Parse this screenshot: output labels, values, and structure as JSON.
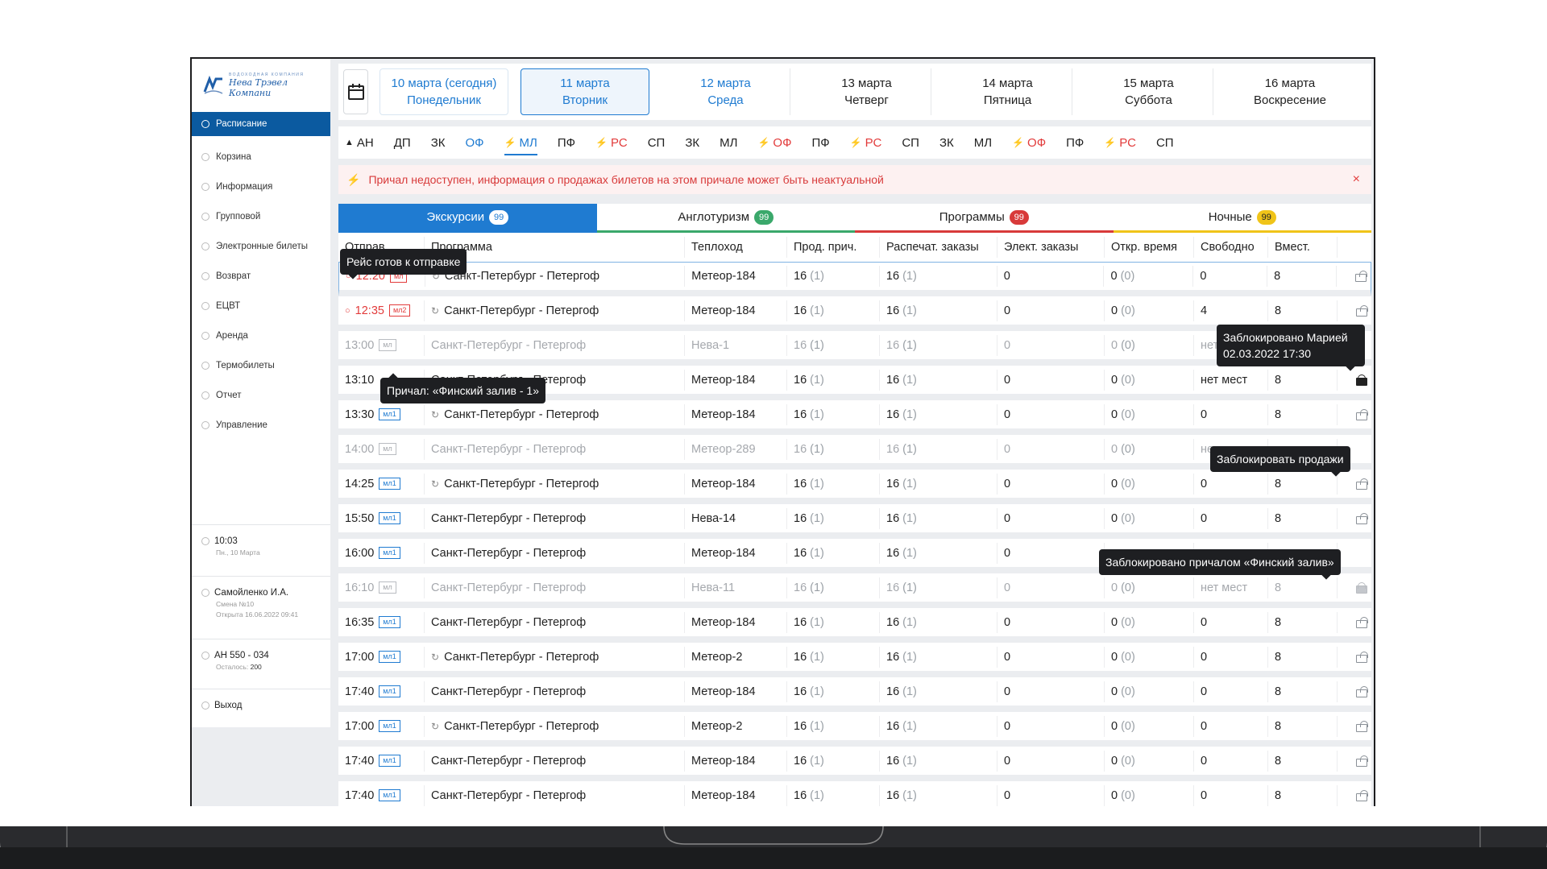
{
  "sidebar": {
    "logo_small": "ВОДОХОДНАЯ КОМПАНИЯ",
    "logo_big": "Нева Трэвел Компани",
    "items": [
      {
        "label": "Расписание",
        "active": true
      },
      {
        "label": "Корзина"
      },
      {
        "label": "Информация"
      },
      {
        "label": "Групповой"
      },
      {
        "label": "Электронные билеты"
      },
      {
        "label": "Возврат"
      },
      {
        "label": "ЕЦВТ"
      },
      {
        "label": "Аренда"
      },
      {
        "label": "Термобилеты"
      },
      {
        "label": "Отчет"
      },
      {
        "label": "Управление"
      }
    ],
    "clock": {
      "time": "10:03",
      "date": "Пн., 10 Марта"
    },
    "user": {
      "name": "Самойленко И.А.",
      "shift": "Смена №10",
      "opened": "Открыта 16.06.2022 09:41"
    },
    "terminal": {
      "id": "АН 550 - 034",
      "left_label": "Осталось:",
      "left_value": "200"
    },
    "logout": "Выход"
  },
  "dates": [
    {
      "line1": "10 марта (сегодня)",
      "line2": "Понедельник",
      "state": "today"
    },
    {
      "line1": "11 марта",
      "line2": "Вторник",
      "state": "selected"
    },
    {
      "line1": "12 марта",
      "line2": "Среда",
      "state": "blue"
    },
    {
      "line1": "13 марта",
      "line2": "Четверг"
    },
    {
      "line1": "14 марта",
      "line2": "Пятница"
    },
    {
      "line1": "15 марта",
      "line2": "Суббота"
    },
    {
      "line1": "16 марта",
      "line2": "Воскресение"
    }
  ],
  "piers": [
    {
      "label": "АН",
      "icon": "home"
    },
    {
      "label": "ДП"
    },
    {
      "label": "ЗК"
    },
    {
      "label": "ОФ",
      "style": "blue"
    },
    {
      "label": "МЛ",
      "style": "selected",
      "icon": "flash"
    },
    {
      "label": "ПФ"
    },
    {
      "label": "РС",
      "style": "red",
      "icon": "flash"
    },
    {
      "label": "СП"
    },
    {
      "label": "ЗК"
    },
    {
      "label": "МЛ"
    },
    {
      "label": "ОФ",
      "style": "red",
      "icon": "flash"
    },
    {
      "label": "ПФ"
    },
    {
      "label": "РС",
      "style": "red",
      "icon": "flash"
    },
    {
      "label": "СП"
    },
    {
      "label": "ЗК"
    },
    {
      "label": "МЛ"
    },
    {
      "label": "ОФ",
      "style": "red",
      "icon": "flash"
    },
    {
      "label": "ПФ"
    },
    {
      "label": "РС",
      "style": "red",
      "icon": "flash"
    },
    {
      "label": "СП"
    }
  ],
  "alert": {
    "text": "Причал недоступен, информация о продажах билетов на этом причале может быть неактуальной",
    "close": "×"
  },
  "tabs": [
    {
      "label": "Экскурсии",
      "count": "99",
      "color": "#1f7bd1",
      "active": true
    },
    {
      "label": "Англотуризм",
      "count": "99",
      "color": "#3aa86b"
    },
    {
      "label": "Программы",
      "count": "99",
      "color": "#d83a3a"
    },
    {
      "label": "Ночные",
      "count": "99",
      "color": "#f0c419"
    }
  ],
  "columns": [
    "Отправ.",
    "Программа",
    "Теплоход",
    "Прод. прич.",
    "Распечат. заказы",
    "Элект. заказы",
    "Откр. время",
    "Свободно",
    "Вмест."
  ],
  "rows": [
    {
      "time": "12:20",
      "tag": "мл",
      "tagStyle": "red",
      "timeRed": true,
      "sync": true,
      "route": "Санкт-Петербург - Петергоф",
      "ship": "Метеор-184",
      "prod": "16",
      "prodSub": "(1)",
      "print": "16",
      "printSub": "(1)",
      "elect": "0",
      "open": "0",
      "openSub": "(0)",
      "free": "0",
      "cap": "8",
      "lock": "open",
      "selected": true
    },
    {
      "time": "12:35",
      "tag": "мл2",
      "tagStyle": "red",
      "timeRed": true,
      "sync": true,
      "route": "Санкт-Петербург - Петергоф",
      "ship": "Метеор-184",
      "prod": "16",
      "prodSub": "(1)",
      "print": "16",
      "printSub": "(1)",
      "elect": "0",
      "open": "0",
      "openSub": "(0)",
      "free": "4",
      "cap": "8",
      "lock": "open"
    },
    {
      "time": "13:00",
      "tag": "мл",
      "tagStyle": "gray",
      "gray": true,
      "route": "Санкт-Петербург - Петергоф",
      "ship": "Нева-1",
      "prod": "16",
      "prodSub": "(1)",
      "print": "16",
      "printSub": "(1)",
      "elect": "0",
      "open": "0",
      "openSub": "(0)",
      "free": "нет мест",
      "cap": "",
      "lock": "none"
    },
    {
      "time": "13:10",
      "tag": "",
      "route": "Санкт-Петербург - Петергоф",
      "ship": "Метеор-184",
      "prod": "16",
      "prodSub": "(1)",
      "print": "16",
      "printSub": "(1)",
      "elect": "0",
      "open": "0",
      "openSub": "(0)",
      "free": "нет мест",
      "cap": "8",
      "lock": "closed"
    },
    {
      "time": "13:30",
      "tag": "мл1",
      "sync": true,
      "route": "Санкт-Петербург - Петергоф",
      "ship": "Метеор-184",
      "prod": "16",
      "prodSub": "(1)",
      "print": "16",
      "printSub": "(1)",
      "elect": "0",
      "open": "0",
      "openSub": "(0)",
      "free": "0",
      "cap": "8",
      "lock": "open"
    },
    {
      "time": "14:00",
      "tag": "мл",
      "tagStyle": "gray",
      "gray": true,
      "route": "Санкт-Петербург - Петергоф",
      "ship": "Метеор-289",
      "prod": "16",
      "prodSub": "(1)",
      "print": "16",
      "printSub": "(1)",
      "elect": "0",
      "open": "0",
      "openSub": "(0)",
      "free": "не",
      "cap": "",
      "lock": "none"
    },
    {
      "time": "14:25",
      "tag": "мл1",
      "sync": true,
      "route": "Санкт-Петербург - Петергоф",
      "ship": "Метеор-184",
      "prod": "16",
      "prodSub": "(1)",
      "print": "16",
      "printSub": "(1)",
      "elect": "0",
      "open": "0",
      "openSub": "(0)",
      "free": "0",
      "cap": "8",
      "lock": "open"
    },
    {
      "time": "15:50",
      "tag": "мл1",
      "route": "Санкт-Петербург - Петергоф",
      "ship": "Нева-14",
      "prod": "16",
      "prodSub": "(1)",
      "print": "16",
      "printSub": "(1)",
      "elect": "0",
      "open": "0",
      "openSub": "(0)",
      "free": "0",
      "cap": "8",
      "lock": "open"
    },
    {
      "time": "16:00",
      "tag": "мл1",
      "route": "Санкт-Петербург - Петергоф",
      "ship": "Метеор-184",
      "prod": "16",
      "prodSub": "(1)",
      "print": "16",
      "printSub": "(1)",
      "elect": "0",
      "open": "",
      "openSub": "",
      "free": "",
      "cap": "",
      "lock": "none"
    },
    {
      "time": "16:10",
      "tag": "мл",
      "tagStyle": "gray",
      "gray": true,
      "route": "Санкт-Петербург - Петергоф",
      "ship": "Нева-11",
      "prod": "16",
      "prodSub": "(1)",
      "print": "16",
      "printSub": "(1)",
      "elect": "0",
      "open": "0",
      "openSub": "(0)",
      "free": "нет мест",
      "cap": "8",
      "lock": "gray"
    },
    {
      "time": "16:35",
      "tag": "мл1",
      "route": "Санкт-Петербург - Петергоф",
      "ship": "Метеор-184",
      "prod": "16",
      "prodSub": "(1)",
      "print": "16",
      "printSub": "(1)",
      "elect": "0",
      "open": "0",
      "openSub": "(0)",
      "free": "0",
      "cap": "8",
      "lock": "open"
    },
    {
      "time": "17:00",
      "tag": "мл1",
      "sync": true,
      "route": "Санкт-Петербург - Петергоф",
      "ship": "Метеор-2",
      "prod": "16",
      "prodSub": "(1)",
      "print": "16",
      "printSub": "(1)",
      "elect": "0",
      "open": "0",
      "openSub": "(0)",
      "free": "0",
      "cap": "8",
      "lock": "open"
    },
    {
      "time": "17:40",
      "tag": "мл1",
      "route": "Санкт-Петербург - Петергоф",
      "ship": "Метеор-184",
      "prod": "16",
      "prodSub": "(1)",
      "print": "16",
      "printSub": "(1)",
      "elect": "0",
      "open": "0",
      "openSub": "(0)",
      "free": "0",
      "cap": "8",
      "lock": "open"
    },
    {
      "time": "17:00",
      "tag": "мл1",
      "sync": true,
      "route": "Санкт-Петербург - Петергоф",
      "ship": "Метеор-2",
      "prod": "16",
      "prodSub": "(1)",
      "print": "16",
      "printSub": "(1)",
      "elect": "0",
      "open": "0",
      "openSub": "(0)",
      "free": "0",
      "cap": "8",
      "lock": "open"
    },
    {
      "time": "17:40",
      "tag": "мл1",
      "route": "Санкт-Петербург - Петергоф",
      "ship": "Метеор-184",
      "prod": "16",
      "prodSub": "(1)",
      "print": "16",
      "printSub": "(1)",
      "elect": "0",
      "open": "0",
      "openSub": "(0)",
      "free": "0",
      "cap": "8",
      "lock": "open"
    },
    {
      "time": "17:40",
      "tag": "мл1",
      "route": "Санкт-Петербург - Петергоф",
      "ship": "Метеор-184",
      "prod": "16",
      "prodSub": "(1)",
      "print": "16",
      "printSub": "(1)",
      "elect": "0",
      "open": "0",
      "openSub": "(0)",
      "free": "0",
      "cap": "8",
      "lock": "open"
    }
  ],
  "tooltips": {
    "ready": "Рейс готов к отправке",
    "locked_by": "Заблокировано Марией 02.03.2022 17:30",
    "pier": "Причал: «Финский залив - 1»",
    "lock_sales": "Заблокировать продажи",
    "locked_pier": "Заблокировано причалом «Финский залив»"
  }
}
